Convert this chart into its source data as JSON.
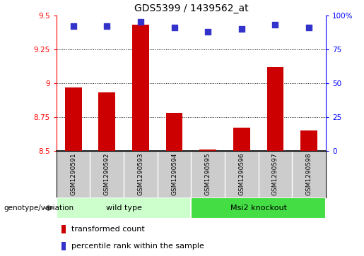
{
  "title": "GDS5399 / 1439562_at",
  "samples": [
    "GSM1290591",
    "GSM1290592",
    "GSM1290593",
    "GSM1290594",
    "GSM1290595",
    "GSM1290596",
    "GSM1290597",
    "GSM1290598"
  ],
  "transformed_count": [
    8.97,
    8.93,
    9.43,
    8.78,
    8.51,
    8.67,
    9.12,
    8.65
  ],
  "percentile_rank": [
    92,
    92,
    95,
    91,
    88,
    90,
    93,
    91
  ],
  "ylim_left": [
    8.5,
    9.5
  ],
  "ylim_right": [
    0,
    100
  ],
  "yticks_left": [
    8.5,
    8.75,
    9.0,
    9.25,
    9.5
  ],
  "yticks_right": [
    0,
    25,
    50,
    75,
    100
  ],
  "ytick_labels_left": [
    "8.5",
    "8.75",
    "9",
    "9.25",
    "9.5"
  ],
  "ytick_labels_right": [
    "0",
    "25",
    "50",
    "75",
    "100%"
  ],
  "grid_lines": [
    8.75,
    9.0,
    9.25
  ],
  "bar_color": "#cc0000",
  "scatter_color": "#3333cc",
  "groups": [
    {
      "label": "wild type",
      "indices": [
        0,
        1,
        2,
        3
      ],
      "color": "#ccffcc"
    },
    {
      "label": "Msi2 knockout",
      "indices": [
        4,
        5,
        6,
        7
      ],
      "color": "#44dd44"
    }
  ],
  "group_label_prefix": "genotype/variation",
  "legend_bar_label": "transformed count",
  "legend_scatter_label": "percentile rank within the sample",
  "bar_width": 0.5,
  "scatter_size": 40,
  "sample_bg_color": "#cccccc",
  "plot_bg_color": "#ffffff",
  "title_fontsize": 10,
  "tick_fontsize": 7.5,
  "label_fontsize": 8
}
